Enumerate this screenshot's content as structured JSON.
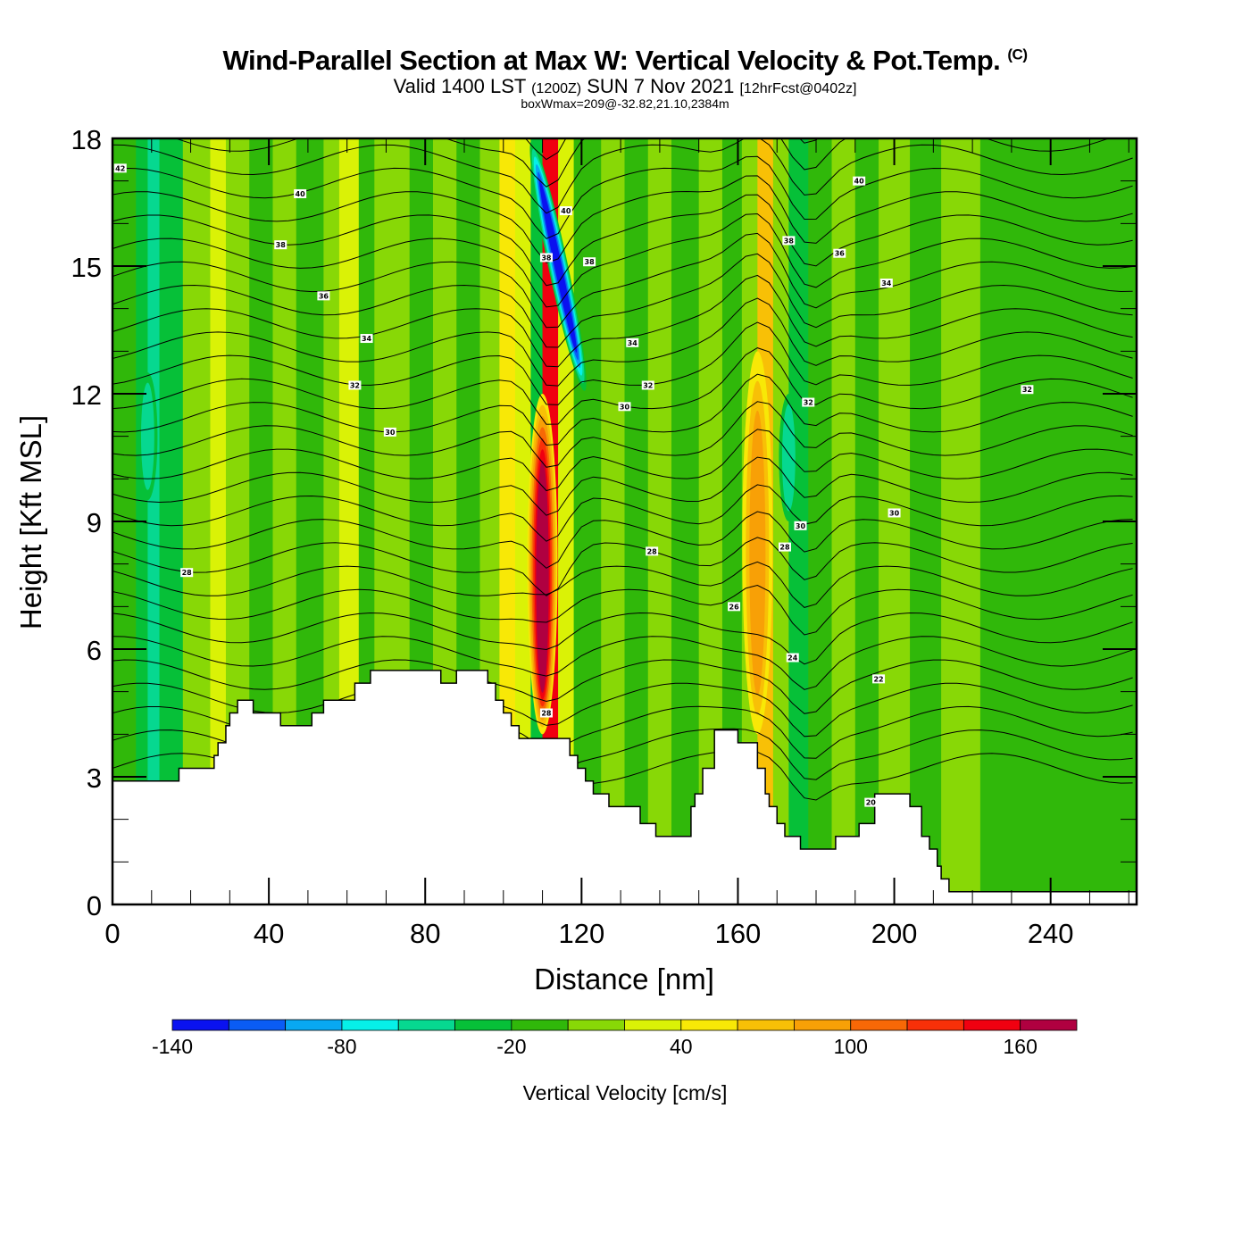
{
  "title": {
    "main": "Wind-Parallel Section at Max W: Vertical Velocity & Pot.Temp.",
    "copyright": "(C)",
    "valid_prefix": "Valid 1400 LST",
    "valid_utc": "(1200Z)",
    "valid_date": "SUN 7 Nov 2021",
    "forecast": "[12hrFcst@0402z]",
    "box_info": "boxWmax=209@-32.82,21.10,2384m"
  },
  "chart_data": {
    "type": "heatmap",
    "title": "Wind-Parallel Section at Max W: Vertical Velocity & Pot.Temp.",
    "xlabel": "Distance [nm]",
    "ylabel": "Height [Kft MSL]",
    "xlim": [
      0,
      262
    ],
    "ylim": [
      0,
      18
    ],
    "x_ticks": [
      "0",
      "40",
      "80",
      "120",
      "160",
      "200",
      "240"
    ],
    "x_tick_values": [
      0,
      40,
      80,
      120,
      160,
      200,
      240
    ],
    "y_ticks": [
      "0",
      "3",
      "6",
      "9",
      "12",
      "15",
      "18"
    ],
    "y_tick_values": [
      0,
      3,
      6,
      9,
      12,
      15,
      18
    ],
    "colorbar": {
      "label": "Vertical Velocity [cm/s]",
      "bounds": [
        -140,
        180
      ],
      "step": 20,
      "tick_labels": [
        "-140",
        "-80",
        "-20",
        "40",
        "100",
        "160"
      ],
      "tick_values": [
        -140,
        -80,
        -20,
        40,
        100,
        160
      ],
      "colors": [
        "#0a12f0",
        "#0a5cf5",
        "#08a8f2",
        "#06f0e8",
        "#06d890",
        "#06c038",
        "#30b80a",
        "#88d806",
        "#daf206",
        "#f8e806",
        "#f8c006",
        "#f8a006",
        "#f86806",
        "#f83008",
        "#f00010",
        "#b00040"
      ]
    },
    "velocity_bands": [
      {
        "x": 0,
        "w": -20
      },
      {
        "x": 6,
        "w": -30
      },
      {
        "x": 9,
        "w": -45
      },
      {
        "x": 12,
        "w": -30
      },
      {
        "x": 18,
        "w": 5
      },
      {
        "x": 25,
        "w": 25
      },
      {
        "x": 29,
        "w": 5
      },
      {
        "x": 35,
        "w": -10
      },
      {
        "x": 41,
        "w": 10
      },
      {
        "x": 47,
        "w": -20
      },
      {
        "x": 54,
        "w": 5
      },
      {
        "x": 58,
        "w": 20
      },
      {
        "x": 63,
        "w": -5
      },
      {
        "x": 67,
        "w": 15
      },
      {
        "x": 71,
        "w": 5
      },
      {
        "x": 76,
        "w": -15
      },
      {
        "x": 82,
        "w": 5
      },
      {
        "x": 88,
        "w": -10
      },
      {
        "x": 94,
        "w": 10
      },
      {
        "x": 99,
        "w": 40
      },
      {
        "x": 103,
        "w": 25
      },
      {
        "x": 107,
        "w": -40
      },
      {
        "x": 110,
        "w": 150
      },
      {
        "x": 114,
        "w": 25
      },
      {
        "x": 118,
        "w": -10
      },
      {
        "x": 125,
        "w": 5
      },
      {
        "x": 131,
        "w": -10
      },
      {
        "x": 137,
        "w": 10
      },
      {
        "x": 143,
        "w": -5
      },
      {
        "x": 150,
        "w": 10
      },
      {
        "x": 156,
        "w": -5
      },
      {
        "x": 161,
        "w": 15
      },
      {
        "x": 165,
        "w": 70
      },
      {
        "x": 169,
        "w": 10
      },
      {
        "x": 173,
        "w": -35
      },
      {
        "x": 178,
        "w": -10
      },
      {
        "x": 184,
        "w": 5
      },
      {
        "x": 190,
        "w": -15
      },
      {
        "x": 196,
        "w": 5
      },
      {
        "x": 204,
        "w": -5
      },
      {
        "x": 212,
        "w": 10
      },
      {
        "x": 222,
        "w": -5
      },
      {
        "x": 240,
        "w": -10
      },
      {
        "x": 262,
        "w": -10
      }
    ],
    "updraft_cores": [
      {
        "x": 110,
        "ymin": 4,
        "ymax": 12,
        "w": 180
      },
      {
        "x": 165,
        "ymin": 4,
        "ymax": 13,
        "w": 80
      }
    ],
    "downdraft_cores": [
      {
        "x": 114,
        "ymin": 12,
        "ymax": 18,
        "w": -140
      },
      {
        "x": 173,
        "ymin": 9,
        "ymax": 12,
        "w": -60
      },
      {
        "x": 9,
        "ymin": 9.5,
        "ymax": 12.5,
        "w": -60
      }
    ],
    "theta_contours": {
      "levels_labeled": [
        "42",
        "40",
        "38",
        "36",
        "34",
        "32",
        "30",
        "28",
        "26",
        "24",
        "22",
        "20"
      ],
      "labels": [
        {
          "text": "42",
          "x": 2,
          "y": 17.3
        },
        {
          "text": "40",
          "x": 48,
          "y": 16.7
        },
        {
          "text": "38",
          "x": 43,
          "y": 15.5
        },
        {
          "text": "36",
          "x": 54,
          "y": 14.3
        },
        {
          "text": "34",
          "x": 65,
          "y": 13.3
        },
        {
          "text": "32",
          "x": 62,
          "y": 12.2
        },
        {
          "text": "30",
          "x": 71,
          "y": 11.1
        },
        {
          "text": "40",
          "x": 116,
          "y": 16.3
        },
        {
          "text": "38",
          "x": 111,
          "y": 15.2
        },
        {
          "text": "38",
          "x": 122,
          "y": 15.1
        },
        {
          "text": "34",
          "x": 133,
          "y": 13.2
        },
        {
          "text": "32",
          "x": 137,
          "y": 12.2
        },
        {
          "text": "30",
          "x": 131,
          "y": 11.7
        },
        {
          "text": "38",
          "x": 173,
          "y": 15.6
        },
        {
          "text": "36",
          "x": 186,
          "y": 15.3
        },
        {
          "text": "34",
          "x": 198,
          "y": 14.6
        },
        {
          "text": "40",
          "x": 191,
          "y": 17.0
        },
        {
          "text": "32",
          "x": 178,
          "y": 11.8
        },
        {
          "text": "32",
          "x": 234,
          "y": 12.1
        },
        {
          "text": "30",
          "x": 200,
          "y": 9.2
        },
        {
          "text": "30",
          "x": 176,
          "y": 8.9
        },
        {
          "text": "28",
          "x": 172,
          "y": 8.4
        },
        {
          "text": "28",
          "x": 138,
          "y": 8.3
        },
        {
          "text": "26",
          "x": 159,
          "y": 7.0
        },
        {
          "text": "24",
          "x": 174,
          "y": 5.8
        },
        {
          "text": "22",
          "x": 196,
          "y": 5.3
        },
        {
          "text": "28",
          "x": 19,
          "y": 7.8
        },
        {
          "text": "28",
          "x": 111,
          "y": 4.5
        },
        {
          "text": "20",
          "x": 194,
          "y": 2.4
        }
      ]
    },
    "terrain_kft": [
      {
        "x": 0,
        "h": 2.9
      },
      {
        "x": 17,
        "h": 3.2
      },
      {
        "x": 26,
        "h": 3.5
      },
      {
        "x": 27,
        "h": 3.8
      },
      {
        "x": 29,
        "h": 4.2
      },
      {
        "x": 30,
        "h": 4.5
      },
      {
        "x": 32,
        "h": 4.8
      },
      {
        "x": 36,
        "h": 4.5
      },
      {
        "x": 43,
        "h": 4.2
      },
      {
        "x": 51,
        "h": 4.5
      },
      {
        "x": 54,
        "h": 4.8
      },
      {
        "x": 62,
        "h": 5.2
      },
      {
        "x": 66,
        "h": 5.5
      },
      {
        "x": 84,
        "h": 5.2
      },
      {
        "x": 88,
        "h": 5.5
      },
      {
        "x": 96,
        "h": 5.2
      },
      {
        "x": 98,
        "h": 4.8
      },
      {
        "x": 100,
        "h": 4.5
      },
      {
        "x": 102,
        "h": 4.2
      },
      {
        "x": 104,
        "h": 3.9
      },
      {
        "x": 117,
        "h": 3.5
      },
      {
        "x": 119,
        "h": 3.2
      },
      {
        "x": 121,
        "h": 2.9
      },
      {
        "x": 123,
        "h": 2.6
      },
      {
        "x": 127,
        "h": 2.3
      },
      {
        "x": 135,
        "h": 1.9
      },
      {
        "x": 139,
        "h": 1.6
      },
      {
        "x": 148,
        "h": 2.3
      },
      {
        "x": 149,
        "h": 2.6
      },
      {
        "x": 151,
        "h": 3.2
      },
      {
        "x": 154,
        "h": 4.1
      },
      {
        "x": 160,
        "h": 3.8
      },
      {
        "x": 165,
        "h": 3.2
      },
      {
        "x": 167,
        "h": 2.6
      },
      {
        "x": 168,
        "h": 2.3
      },
      {
        "x": 170,
        "h": 1.9
      },
      {
        "x": 172,
        "h": 1.6
      },
      {
        "x": 176,
        "h": 1.3
      },
      {
        "x": 185,
        "h": 1.6
      },
      {
        "x": 191,
        "h": 1.9
      },
      {
        "x": 195,
        "h": 2.6
      },
      {
        "x": 204,
        "h": 2.3
      },
      {
        "x": 207,
        "h": 1.6
      },
      {
        "x": 209,
        "h": 1.3
      },
      {
        "x": 211,
        "h": 0.9
      },
      {
        "x": 212,
        "h": 0.6
      },
      {
        "x": 214,
        "h": 0.3
      },
      {
        "x": 262,
        "h": 0.3
      }
    ]
  }
}
